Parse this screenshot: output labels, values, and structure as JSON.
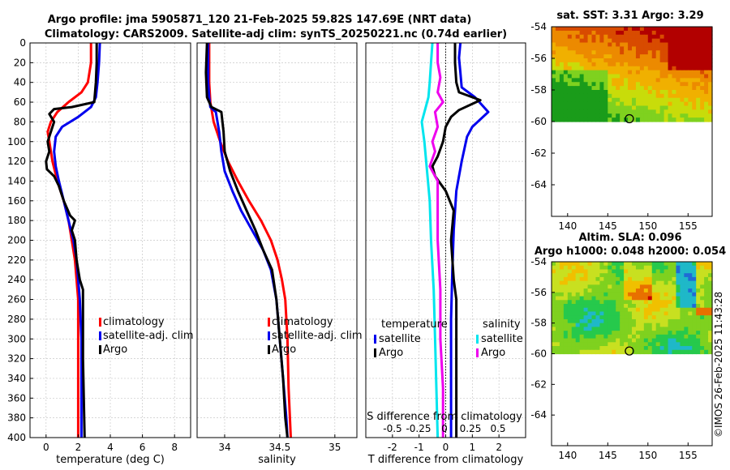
{
  "header": {
    "title_line1": "Argo profile: jma 5905871_120 21-Feb-2025 59.82S 147.69E (NRT data)",
    "title_line2": "Climatology: CARS2009. Satellite-adj clim: synTS_20250221.nc (0.74d earlier)"
  },
  "colors": {
    "climatology": "#ff0000",
    "satellite": "#0000ee",
    "argo": "#000000",
    "sat_salinity": "#00e5ee",
    "argo_salinity": "#ee00ee"
  },
  "chart_data": [
    {
      "name": "temperature",
      "type": "line",
      "xlabel": "temperature (deg C)",
      "xlim": [
        -1,
        9
      ],
      "ylim": [
        0,
        400
      ],
      "xticks": [
        "0",
        "2",
        "4",
        "6",
        "8"
      ],
      "xtick_values": [
        0,
        2,
        4,
        6,
        8
      ],
      "yticks": [
        "0",
        "20",
        "40",
        "60",
        "80",
        "100",
        "120",
        "140",
        "160",
        "180",
        "200",
        "220",
        "240",
        "260",
        "280",
        "300",
        "320",
        "340",
        "360",
        "380",
        "400"
      ],
      "legend": [
        "climatology",
        "satellite-adj. clim",
        "Argo"
      ],
      "series": [
        {
          "name": "climatology",
          "color": "#ff0000",
          "points": [
            [
              2.8,
              0
            ],
            [
              2.8,
              20
            ],
            [
              2.6,
              40
            ],
            [
              2.2,
              50
            ],
            [
              1.4,
              60
            ],
            [
              0.7,
              70
            ],
            [
              0.3,
              80
            ],
            [
              0.1,
              90
            ],
            [
              0.2,
              100
            ],
            [
              0.4,
              120
            ],
            [
              0.7,
              140
            ],
            [
              1.1,
              160
            ],
            [
              1.4,
              180
            ],
            [
              1.6,
              200
            ],
            [
              1.8,
              220
            ],
            [
              1.9,
              240
            ],
            [
              2.0,
              260
            ],
            [
              2.0,
              280
            ],
            [
              2.0,
              300
            ],
            [
              2.0,
              340
            ],
            [
              2.0,
              380
            ],
            [
              2.0,
              400
            ]
          ]
        },
        {
          "name": "satellite-adj. clim",
          "color": "#0000ee",
          "points": [
            [
              3.35,
              0
            ],
            [
              3.3,
              20
            ],
            [
              3.2,
              40
            ],
            [
              3.1,
              55
            ],
            [
              2.8,
              65
            ],
            [
              2.0,
              75
            ],
            [
              1.0,
              85
            ],
            [
              0.6,
              95
            ],
            [
              0.5,
              110
            ],
            [
              0.6,
              125
            ],
            [
              0.8,
              140
            ],
            [
              1.1,
              160
            ],
            [
              1.4,
              180
            ],
            [
              1.7,
              200
            ],
            [
              1.9,
              220
            ],
            [
              2.0,
              240
            ],
            [
              2.1,
              260
            ],
            [
              2.15,
              280
            ],
            [
              2.2,
              300
            ],
            [
              2.2,
              340
            ],
            [
              2.2,
              380
            ],
            [
              2.2,
              400
            ]
          ]
        },
        {
          "name": "Argo",
          "color": "#000000",
          "points": [
            [
              3.15,
              0
            ],
            [
              3.15,
              20
            ],
            [
              3.1,
              40
            ],
            [
              3.0,
              60
            ],
            [
              1.6,
              65
            ],
            [
              0.5,
              67
            ],
            [
              0.2,
              72
            ],
            [
              0.5,
              80
            ],
            [
              0.3,
              90
            ],
            [
              0.1,
              100
            ],
            [
              0.2,
              110
            ],
            [
              0.0,
              120
            ],
            [
              0.05,
              128
            ],
            [
              0.5,
              135
            ],
            [
              0.8,
              145
            ],
            [
              1.1,
              160
            ],
            [
              1.5,
              175
            ],
            [
              1.8,
              180
            ],
            [
              1.6,
              190
            ],
            [
              1.8,
              200
            ],
            [
              1.9,
              220
            ],
            [
              2.1,
              240
            ],
            [
              2.3,
              250
            ],
            [
              2.3,
              280
            ],
            [
              2.3,
              320
            ],
            [
              2.35,
              360
            ],
            [
              2.4,
              400
            ]
          ]
        }
      ]
    },
    {
      "name": "salinity",
      "type": "line",
      "xlabel": "salinity",
      "xlim": [
        33.75,
        35.2
      ],
      "ylim": [
        0,
        400
      ],
      "xticks": [
        "34",
        "34.5",
        "35"
      ],
      "xtick_values": [
        34,
        34.5,
        35
      ],
      "legend": [
        "climatology",
        "satellite-adj. clim",
        "Argo"
      ],
      "series": [
        {
          "name": "climatology",
          "color": "#ff0000",
          "points": [
            [
              33.86,
              0
            ],
            [
              33.86,
              40
            ],
            [
              33.87,
              60
            ],
            [
              33.9,
              80
            ],
            [
              33.96,
              100
            ],
            [
              34.03,
              120
            ],
            [
              34.12,
              140
            ],
            [
              34.22,
              160
            ],
            [
              34.33,
              180
            ],
            [
              34.42,
              200
            ],
            [
              34.48,
              220
            ],
            [
              34.52,
              240
            ],
            [
              34.55,
              260
            ],
            [
              34.57,
              300
            ],
            [
              34.58,
              350
            ],
            [
              34.6,
              400
            ]
          ]
        },
        {
          "name": "satellite-adj. clim",
          "color": "#0000ee",
          "points": [
            [
              33.85,
              0
            ],
            [
              33.85,
              40
            ],
            [
              33.86,
              55
            ],
            [
              33.87,
              65
            ],
            [
              33.92,
              70
            ],
            [
              33.95,
              90
            ],
            [
              33.97,
              110
            ],
            [
              34.0,
              130
            ],
            [
              34.07,
              150
            ],
            [
              34.15,
              170
            ],
            [
              34.25,
              190
            ],
            [
              34.35,
              210
            ],
            [
              34.42,
              230
            ],
            [
              34.47,
              260
            ],
            [
              34.5,
              300
            ],
            [
              34.53,
              340
            ],
            [
              34.56,
              380
            ],
            [
              34.57,
              400
            ]
          ]
        },
        {
          "name": "Argo",
          "color": "#000000",
          "points": [
            [
              33.84,
              0
            ],
            [
              33.83,
              30
            ],
            [
              33.84,
              55
            ],
            [
              33.88,
              65
            ],
            [
              33.97,
              70
            ],
            [
              33.99,
              90
            ],
            [
              34.0,
              110
            ],
            [
              34.05,
              130
            ],
            [
              34.12,
              150
            ],
            [
              34.2,
              170
            ],
            [
              34.28,
              190
            ],
            [
              34.35,
              210
            ],
            [
              34.43,
              230
            ],
            [
              34.47,
              260
            ],
            [
              34.5,
              300
            ],
            [
              34.53,
              340
            ],
            [
              34.55,
              380
            ],
            [
              34.57,
              400
            ]
          ]
        }
      ]
    },
    {
      "name": "difference",
      "type": "line",
      "xlabel": "T difference from climatology",
      "top_label": "S difference from climatology",
      "xlim": [
        -3,
        3
      ],
      "ylim": [
        0,
        400
      ],
      "xticks": [
        "-2",
        "-1",
        "0",
        "1",
        "2"
      ],
      "xtick_values": [
        -2,
        -1,
        0,
        1,
        2
      ],
      "top_ticks": [
        "-0.5",
        "-0.25",
        "0",
        "0.25",
        "0.5"
      ],
      "legend_headers": [
        "temperature",
        "salinity"
      ],
      "legend_left": [
        "satellite",
        "Argo"
      ],
      "legend_right": [
        "satellite",
        "Argo"
      ],
      "series": [
        {
          "name": "T satellite",
          "color": "#0000ee",
          "points": [
            [
              0.55,
              0
            ],
            [
              0.5,
              15
            ],
            [
              0.55,
              30
            ],
            [
              0.6,
              45
            ],
            [
              1.1,
              55
            ],
            [
              1.6,
              70
            ],
            [
              1.0,
              85
            ],
            [
              0.8,
              95
            ],
            [
              0.6,
              120
            ],
            [
              0.4,
              150
            ],
            [
              0.3,
              190
            ],
            [
              0.25,
              230
            ],
            [
              0.2,
              280
            ],
            [
              0.2,
              330
            ],
            [
              0.2,
              400
            ]
          ]
        },
        {
          "name": "T Argo",
          "color": "#000000",
          "points": [
            [
              0.35,
              0
            ],
            [
              0.35,
              20
            ],
            [
              0.4,
              40
            ],
            [
              0.5,
              50
            ],
            [
              1.3,
              58
            ],
            [
              0.5,
              68
            ],
            [
              0.2,
              75
            ],
            [
              0.0,
              85
            ],
            [
              -0.1,
              100
            ],
            [
              -0.3,
              115
            ],
            [
              -0.5,
              125
            ],
            [
              -0.4,
              135
            ],
            [
              0.0,
              150
            ],
            [
              0.3,
              170
            ],
            [
              0.2,
              200
            ],
            [
              0.3,
              240
            ],
            [
              0.4,
              260
            ],
            [
              0.4,
              300
            ],
            [
              0.4,
              350
            ],
            [
              0.4,
              400
            ]
          ]
        },
        {
          "name": "S satellite",
          "color": "#00e5ee",
          "points": [
            [
              -0.5,
              0
            ],
            [
              -0.55,
              20
            ],
            [
              -0.6,
              40
            ],
            [
              -0.65,
              55
            ],
            [
              -0.9,
              80
            ],
            [
              -0.8,
              100
            ],
            [
              -0.7,
              130
            ],
            [
              -0.6,
              160
            ],
            [
              -0.55,
              200
            ],
            [
              -0.45,
              250
            ],
            [
              -0.4,
              300
            ],
            [
              -0.35,
              350
            ],
            [
              -0.3,
              400
            ]
          ]
        },
        {
          "name": "S Argo",
          "color": "#ee00ee",
          "points": [
            [
              -0.3,
              0
            ],
            [
              -0.3,
              20
            ],
            [
              -0.2,
              35
            ],
            [
              -0.3,
              50
            ],
            [
              -0.1,
              60
            ],
            [
              -0.4,
              70
            ],
            [
              -0.3,
              85
            ],
            [
              -0.5,
              100
            ],
            [
              -0.4,
              110
            ],
            [
              -0.6,
              125
            ],
            [
              -0.3,
              140
            ],
            [
              -0.3,
              170
            ],
            [
              -0.3,
              200
            ],
            [
              -0.2,
              250
            ],
            [
              -0.2,
              300
            ],
            [
              -0.1,
              350
            ],
            [
              -0.1,
              400
            ]
          ]
        }
      ]
    },
    {
      "name": "sat_sst_map",
      "type": "heatmap",
      "title": "sat. SST: 3.31 Argo: 3.29",
      "xlim": [
        138,
        158
      ],
      "ylim": [
        -66,
        -54
      ],
      "xticks": [
        "140",
        "145",
        "150",
        "155"
      ],
      "xtick_values": [
        140,
        145,
        150,
        155
      ],
      "yticks": [
        "-54",
        "-56",
        "-58",
        "-60",
        "-62",
        "-64"
      ],
      "ytick_values": [
        -54,
        -56,
        -58,
        -60,
        -62,
        -64
      ],
      "data_ylim": [
        -60,
        -54
      ],
      "marker": [
        147.69,
        -59.82
      ],
      "palette": [
        "#1a9c1a",
        "#7fd11f",
        "#c8dc0a",
        "#f0b000",
        "#ec8a00",
        "#d84b00",
        "#b20000"
      ]
    },
    {
      "name": "sla_map",
      "type": "heatmap",
      "title": "Altim. SLA: 0.096",
      "subtitle": "Argo h1000: 0.048 h2000: 0.054",
      "xlim": [
        138,
        158
      ],
      "ylim": [
        -66,
        -54
      ],
      "xticks": [
        "140",
        "145",
        "150",
        "155"
      ],
      "xtick_values": [
        140,
        145,
        150,
        155
      ],
      "yticks": [
        "-54",
        "-56",
        "-58",
        "-60",
        "-62",
        "-64"
      ],
      "ytick_values": [
        -54,
        -56,
        -58,
        -60,
        -62,
        -64
      ],
      "data_ylim": [
        -60,
        -54
      ],
      "marker": [
        147.69,
        -59.82
      ],
      "palette": [
        "#1f6bd6",
        "#1fb8c8",
        "#26c94c",
        "#7fd11f",
        "#c8e020",
        "#f0c000",
        "#e87000",
        "#c80000"
      ]
    }
  ],
  "stamp": "©IMOS 26-Feb-2025 11:43:28"
}
